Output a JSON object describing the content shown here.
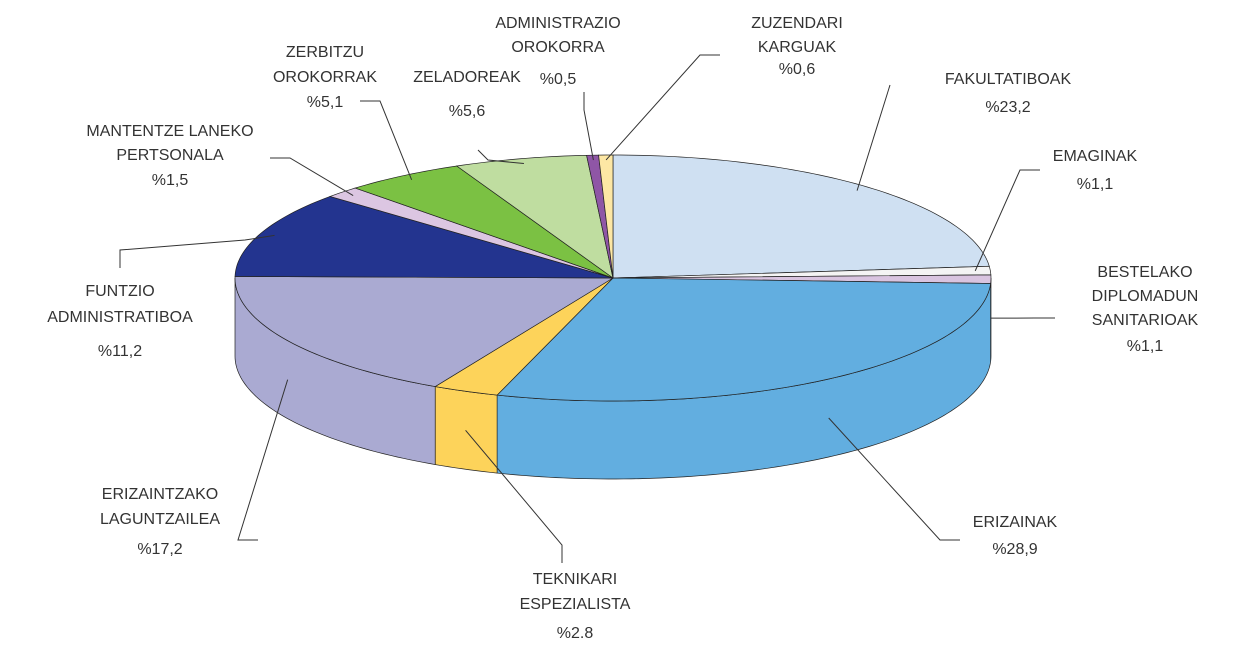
{
  "chart_data": {
    "type": "pie3d",
    "categories": [
      [
        "FAKULTATIBOAK"
      ],
      [
        "EMAGINAK"
      ],
      [
        "BESTELAKO",
        "DIPLOMADUN",
        "SANITARIOAK"
      ],
      [
        "ERIZAINAK"
      ],
      [
        "TEKNIKARI",
        "ESPEZIALISTA"
      ],
      [
        "ERIZAINTZAKO",
        "LAGUNTZAILEA"
      ],
      [
        "FUNTZIO",
        "ADMINISTRATIBOA"
      ],
      [
        "MANTENTZE LANEKO",
        "PERTSONALA"
      ],
      [
        "ZERBITZU",
        "OROKORRAK"
      ],
      [
        "ZELADOREAK"
      ],
      [
        "ADMINISTRAZIO",
        "OROKORRA"
      ],
      [
        "ZUZENDARI",
        "KARGUAK"
      ]
    ],
    "values": [
      23.2,
      1.1,
      1.1,
      28.9,
      2.8,
      17.2,
      11.2,
      1.5,
      5.1,
      5.6,
      0.5,
      0.6
    ],
    "value_labels": [
      "%23,2",
      "%1,1",
      "%1,1",
      "%28,9",
      "%2.8",
      "%17,2",
      "%11,2",
      "%1,5",
      "%5,1",
      "%5,6",
      "%0,5",
      "%0,6"
    ],
    "colors": [
      "#cfe0f2",
      "#f4f4f4",
      "#d9c4e0",
      "#62aee0",
      "#fdd35a",
      "#aaaad2",
      "#23348f",
      "#dcc6e2",
      "#7bc143",
      "#bfdda0",
      "#8f56a6",
      "#fde7a4"
    ]
  }
}
